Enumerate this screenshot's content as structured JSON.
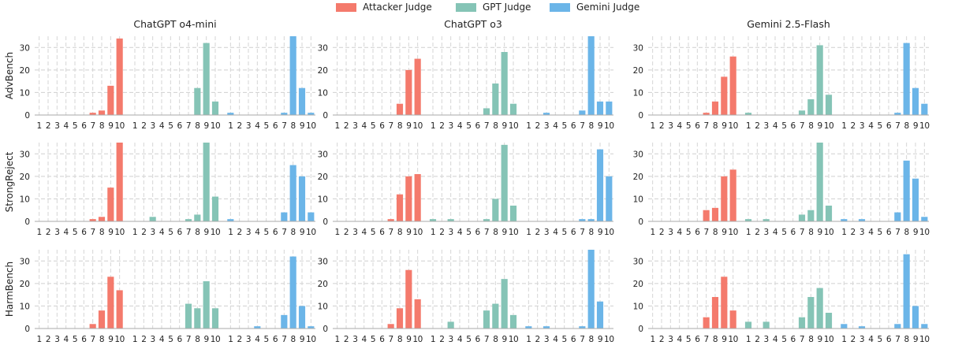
{
  "legend": {
    "items": [
      {
        "label": "Attacker Judge",
        "color": "#F47A6C"
      },
      {
        "label": "GPT Judge",
        "color": "#85C4B6"
      },
      {
        "label": "Gemini Judge",
        "color": "#6BB5E8"
      }
    ]
  },
  "colors": {
    "attacker": "#F47A6C",
    "gpt": "#85C4B6",
    "gemini": "#6BB5E8"
  },
  "chart_data": {
    "type": "bar",
    "columns": [
      "ChatGPT o4-mini",
      "ChatGPT o3",
      "Gemini 2.5-Flash"
    ],
    "rows": [
      "AdvBench",
      "StrongReject",
      "HarmBench"
    ],
    "categories": [
      "1",
      "2",
      "3",
      "4",
      "5",
      "6",
      "7",
      "8",
      "9",
      "10"
    ],
    "ylim": [
      0,
      35
    ],
    "yticks": [
      0,
      10,
      20,
      30
    ],
    "grid": true,
    "legend_position": "top-center",
    "panels": [
      {
        "row": "AdvBench",
        "column": "ChatGPT o4-mini",
        "series": [
          {
            "name": "Attacker Judge",
            "values": [
              0,
              0,
              0,
              0,
              0,
              0,
              1,
              2,
              13,
              34
            ]
          },
          {
            "name": "GPT Judge",
            "values": [
              0,
              0,
              0,
              0,
              0,
              0,
              0,
              12,
              32,
              6
            ]
          },
          {
            "name": "Gemini Judge",
            "values": [
              1,
              0,
              0,
              0,
              0,
              0,
              1,
              35,
              12,
              1
            ]
          }
        ]
      },
      {
        "row": "AdvBench",
        "column": "ChatGPT o3",
        "series": [
          {
            "name": "Attacker Judge",
            "values": [
              0,
              0,
              0,
              0,
              0,
              0,
              0,
              5,
              20,
              25
            ]
          },
          {
            "name": "GPT Judge",
            "values": [
              0,
              0,
              0,
              0,
              0,
              0,
              3,
              14,
              28,
              5
            ]
          },
          {
            "name": "Gemini Judge",
            "values": [
              0,
              0,
              1,
              0,
              0,
              0,
              2,
              35,
              6,
              6
            ]
          }
        ]
      },
      {
        "row": "AdvBench",
        "column": "Gemini 2.5-Flash",
        "series": [
          {
            "name": "Attacker Judge",
            "values": [
              0,
              0,
              0,
              0,
              0,
              0,
              1,
              6,
              17,
              26
            ]
          },
          {
            "name": "GPT Judge",
            "values": [
              1,
              0,
              0,
              0,
              0,
              0,
              2,
              7,
              31,
              9
            ]
          },
          {
            "name": "Gemini Judge",
            "values": [
              0,
              0,
              0,
              0,
              0,
              0,
              1,
              32,
              12,
              5
            ]
          }
        ]
      },
      {
        "row": "StrongReject",
        "column": "ChatGPT o4-mini",
        "series": [
          {
            "name": "Attacker Judge",
            "values": [
              0,
              0,
              0,
              0,
              0,
              0,
              1,
              2,
              15,
              35
            ]
          },
          {
            "name": "GPT Judge",
            "values": [
              0,
              0,
              2,
              0,
              0,
              0,
              1,
              3,
              35,
              11
            ]
          },
          {
            "name": "Gemini Judge",
            "values": [
              1,
              0,
              0,
              0,
              0,
              0,
              4,
              25,
              20,
              4
            ]
          }
        ]
      },
      {
        "row": "StrongReject",
        "column": "ChatGPT o3",
        "series": [
          {
            "name": "Attacker Judge",
            "values": [
              0,
              0,
              0,
              0,
              0,
              0,
              1,
              12,
              20,
              21
            ]
          },
          {
            "name": "GPT Judge",
            "values": [
              1,
              0,
              1,
              0,
              0,
              0,
              1,
              10,
              34,
              7
            ]
          },
          {
            "name": "Gemini Judge",
            "values": [
              0,
              0,
              0,
              0,
              0,
              0,
              1,
              1,
              32,
              20
            ]
          }
        ]
      },
      {
        "row": "StrongReject",
        "column": "Gemini 2.5-Flash",
        "series": [
          {
            "name": "Attacker Judge",
            "values": [
              0,
              0,
              0,
              0,
              0,
              0,
              5,
              6,
              20,
              23
            ]
          },
          {
            "name": "GPT Judge",
            "values": [
              1,
              0,
              1,
              0,
              0,
              0,
              3,
              5,
              35,
              7
            ]
          },
          {
            "name": "Gemini Judge",
            "values": [
              1,
              0,
              1,
              0,
              0,
              0,
              4,
              27,
              19,
              2
            ]
          }
        ]
      },
      {
        "row": "HarmBench",
        "column": "ChatGPT o4-mini",
        "series": [
          {
            "name": "Attacker Judge",
            "values": [
              0,
              0,
              0,
              0,
              0,
              0,
              2,
              8,
              23,
              17
            ]
          },
          {
            "name": "GPT Judge",
            "values": [
              0,
              0,
              0,
              0,
              0,
              0,
              11,
              9,
              21,
              9
            ]
          },
          {
            "name": "Gemini Judge",
            "values": [
              0,
              0,
              0,
              1,
              0,
              0,
              6,
              32,
              10,
              1
            ]
          }
        ]
      },
      {
        "row": "HarmBench",
        "column": "ChatGPT o3",
        "series": [
          {
            "name": "Attacker Judge",
            "values": [
              0,
              0,
              0,
              0,
              0,
              0,
              2,
              9,
              26,
              13
            ]
          },
          {
            "name": "GPT Judge",
            "values": [
              0,
              0,
              3,
              0,
              0,
              0,
              8,
              11,
              22,
              6
            ]
          },
          {
            "name": "Gemini Judge",
            "values": [
              1,
              0,
              1,
              0,
              0,
              0,
              1,
              35,
              12,
              0
            ]
          }
        ]
      },
      {
        "row": "HarmBench",
        "column": "Gemini 2.5-Flash",
        "series": [
          {
            "name": "Attacker Judge",
            "values": [
              0,
              0,
              0,
              0,
              0,
              0,
              5,
              14,
              23,
              8
            ]
          },
          {
            "name": "GPT Judge",
            "values": [
              3,
              0,
              3,
              0,
              0,
              0,
              5,
              14,
              18,
              7
            ]
          },
          {
            "name": "Gemini Judge",
            "values": [
              2,
              0,
              1,
              0,
              0,
              0,
              2,
              33,
              10,
              2
            ]
          }
        ]
      }
    ]
  }
}
